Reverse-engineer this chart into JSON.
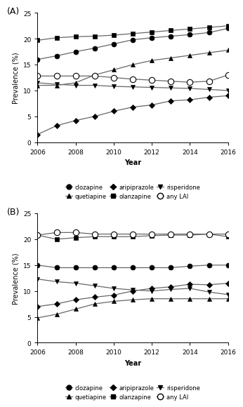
{
  "years": [
    2006,
    2007,
    2008,
    2009,
    2010,
    2011,
    2012,
    2013,
    2014,
    2015,
    2016
  ],
  "panel_A": {
    "title": "(A)",
    "clozapine": [
      16.0,
      16.7,
      17.5,
      18.2,
      19.0,
      19.8,
      20.2,
      20.5,
      20.8,
      21.2,
      22.0
    ],
    "olanzapine": [
      19.7,
      20.2,
      20.4,
      20.5,
      20.7,
      21.0,
      21.3,
      21.6,
      21.9,
      22.2,
      22.5
    ],
    "quetiapine": [
      11.0,
      11.0,
      11.5,
      13.0,
      14.0,
      15.0,
      15.8,
      16.3,
      16.8,
      17.3,
      17.8
    ],
    "risperidone": [
      11.5,
      11.2,
      11.0,
      11.0,
      10.8,
      10.7,
      10.6,
      10.5,
      10.4,
      10.2,
      10.0
    ],
    "aripiprazole": [
      1.5,
      3.2,
      4.2,
      5.0,
      6.0,
      6.8,
      7.2,
      8.0,
      8.2,
      8.7,
      9.0
    ],
    "any_LAI": [
      12.8,
      12.8,
      12.8,
      12.8,
      12.5,
      12.2,
      12.0,
      11.8,
      11.6,
      11.8,
      13.0
    ],
    "ylim": [
      0,
      25
    ],
    "yticks": [
      0,
      5,
      10,
      15,
      20,
      25
    ]
  },
  "panel_B": {
    "title": "(B)",
    "clozapine": [
      15.0,
      14.5,
      14.5,
      14.5,
      14.5,
      14.5,
      14.5,
      14.5,
      14.8,
      15.0,
      15.0
    ],
    "olanzapine": [
      20.8,
      20.0,
      20.3,
      20.5,
      20.5,
      20.5,
      20.7,
      20.8,
      20.8,
      21.0,
      20.5
    ],
    "quetiapine": [
      4.8,
      5.5,
      6.5,
      7.5,
      8.0,
      8.3,
      8.5,
      8.5,
      8.5,
      8.5,
      8.5
    ],
    "risperidone": [
      12.3,
      11.8,
      11.5,
      11.0,
      10.5,
      10.2,
      10.0,
      10.3,
      10.5,
      9.8,
      9.3
    ],
    "aripiprazole": [
      7.0,
      7.5,
      8.3,
      8.8,
      9.2,
      10.0,
      10.5,
      10.8,
      11.3,
      11.2,
      11.5
    ],
    "any_LAI": [
      20.8,
      21.3,
      21.3,
      21.0,
      21.0,
      21.0,
      21.0,
      21.0,
      21.0,
      21.0,
      21.0
    ],
    "ylim": [
      0,
      25
    ],
    "yticks": [
      0,
      5,
      10,
      15,
      20,
      25
    ]
  },
  "line_color": "#666666",
  "marker_size": 5,
  "xlabel": "Year",
  "ylabel": "Prevalence (%)"
}
